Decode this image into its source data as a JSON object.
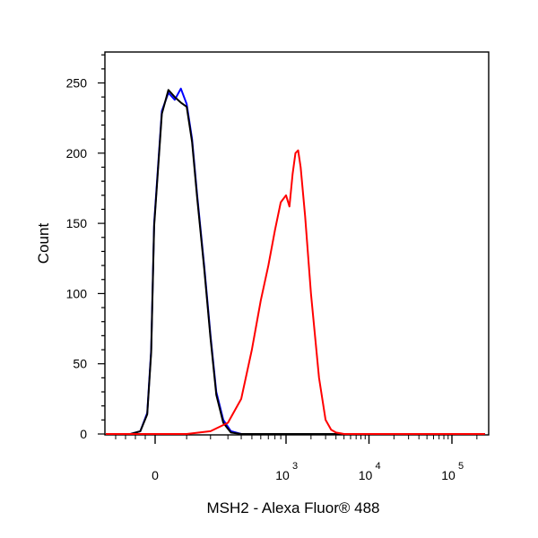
{
  "chart_data": {
    "type": "line",
    "title": "",
    "xlabel": "MSH2 - Alexa Fluor® 488",
    "ylabel": "Count",
    "x_scale": "biexponential",
    "xlim": [
      -500,
      250000
    ],
    "ylim": [
      0,
      270
    ],
    "grid": false,
    "legend": "none",
    "y_ticks": [
      0,
      50,
      100,
      150,
      200,
      250
    ],
    "x_ticks": [
      {
        "value": 0,
        "base": "0",
        "exp": ""
      },
      {
        "value": 1000,
        "base": "10",
        "exp": "3"
      },
      {
        "value": 10000,
        "base": "10",
        "exp": "4"
      },
      {
        "value": 100000,
        "base": "10",
        "exp": "5"
      }
    ],
    "series": [
      {
        "color": "#0000ff",
        "x": [
          -500,
          -250,
          -150,
          -80,
          -40,
          -10,
          20,
          40,
          60,
          80,
          100,
          120,
          140,
          170,
          200,
          230,
          270,
          320,
          400,
          600,
          1000,
          10000,
          250000
        ],
        "y": [
          0,
          0,
          2,
          15,
          60,
          150,
          230,
          243,
          238,
          246,
          235,
          210,
          170,
          120,
          70,
          30,
          10,
          2,
          0,
          0,
          0,
          0,
          0
        ]
      },
      {
        "color": "#000000",
        "x": [
          -500,
          -250,
          -150,
          -80,
          -40,
          -10,
          20,
          40,
          60,
          80,
          100,
          120,
          140,
          170,
          200,
          230,
          270,
          320,
          400,
          600,
          1000,
          10000,
          250000
        ],
        "y": [
          0,
          0,
          2,
          14,
          58,
          148,
          228,
          245,
          240,
          236,
          233,
          208,
          168,
          118,
          68,
          28,
          8,
          1,
          0,
          0,
          0,
          0,
          0
        ]
      },
      {
        "color": "#ff0000",
        "x": [
          -500,
          100,
          200,
          300,
          400,
          500,
          600,
          700,
          800,
          900,
          1000,
          1100,
          1200,
          1300,
          1400,
          1500,
          1700,
          2000,
          2500,
          3000,
          3500,
          4000,
          5000,
          10000,
          250000
        ],
        "y": [
          0,
          0,
          2,
          8,
          25,
          60,
          95,
          120,
          145,
          165,
          170,
          162,
          185,
          200,
          202,
          190,
          155,
          100,
          40,
          10,
          3,
          1,
          0,
          0,
          0
        ]
      }
    ]
  }
}
